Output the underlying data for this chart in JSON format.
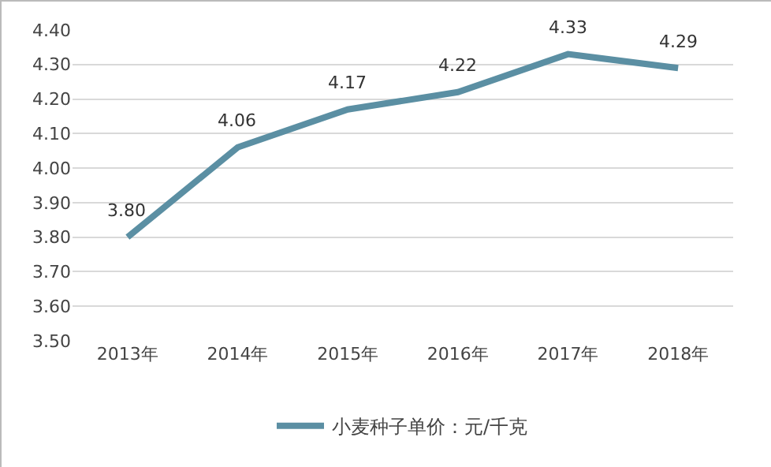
{
  "chart_data": {
    "type": "line",
    "categories": [
      "2013年",
      "2014年",
      "2015年",
      "2016年",
      "2017年",
      "2018年"
    ],
    "series": [
      {
        "name": "小麦种子单价：元/千克",
        "color": "#5b8fa3",
        "values": [
          3.8,
          4.06,
          4.17,
          4.22,
          4.33,
          4.29
        ]
      }
    ],
    "ylim": [
      3.5,
      4.4
    ],
    "yticks": [
      {
        "value": 3.5,
        "label": "3.50"
      },
      {
        "value": 3.6,
        "label": "3.60"
      },
      {
        "value": 3.7,
        "label": "3.70"
      },
      {
        "value": 3.8,
        "label": "3.80"
      },
      {
        "value": 3.9,
        "label": "3.90"
      },
      {
        "value": 4.0,
        "label": "4.00"
      },
      {
        "value": 4.1,
        "label": "4.10"
      },
      {
        "value": 4.2,
        "label": "4.20"
      },
      {
        "value": 4.3,
        "label": "4.30"
      },
      {
        "value": 4.4,
        "label": "4.40"
      }
    ],
    "grid": "y",
    "legend": "bottom",
    "marker": "none",
    "line_style": "solid",
    "value_labels": [
      "3.80",
      "4.06",
      "4.17",
      "4.22",
      "4.33",
      "4.29"
    ]
  }
}
